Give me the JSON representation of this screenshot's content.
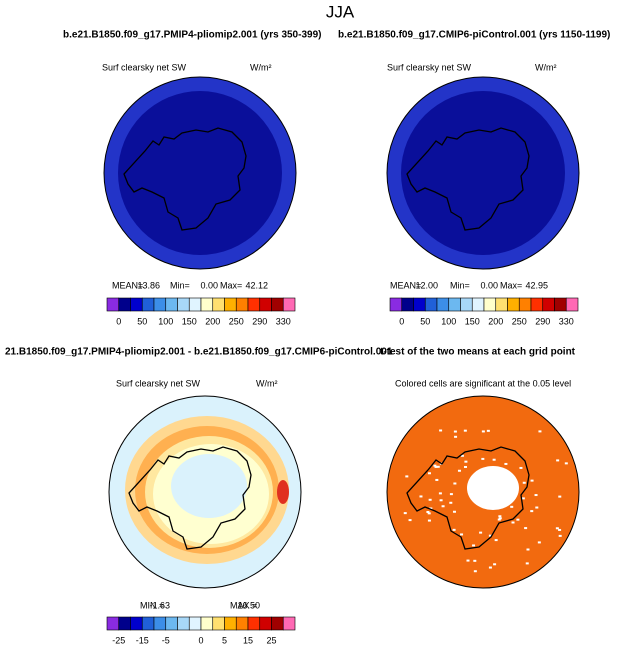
{
  "title": "JJA",
  "panels": [
    {
      "title": "b.e21.B1850.f09_g17.PMIP4-pliomip2.001 (yrs 350-399)",
      "label": "Surf clearsky net SW",
      "units": "W/m²",
      "stats": [
        {
          "label": "MEAN=",
          "value": "13.86"
        },
        {
          "label": "Min=",
          "value": "0.00"
        },
        {
          "label": "Max=",
          "value": "42.12"
        }
      ],
      "colorbar": [
        "0",
        "50",
        "100",
        "150",
        "200",
        "250",
        "290",
        "330"
      ]
    },
    {
      "title": "b.e21.B1850.f09_g17.CMIP6-piControl.001 (yrs 1150-1199)",
      "label": "Surf clearsky net SW",
      "units": "W/m²",
      "stats": [
        {
          "label": "MEAN=",
          "value": "12.00"
        },
        {
          "label": "Min=",
          "value": "0.00"
        },
        {
          "label": "Max=",
          "value": "42.95"
        }
      ],
      "colorbar": [
        "0",
        "50",
        "100",
        "150",
        "200",
        "250",
        "290",
        "330"
      ]
    },
    {
      "title": "21.B1850.f09_g17.PMIP4-pliomip2.001 - b.e21.B1850.f09_g17.CMIP6-piControl.001",
      "label": "Surf clearsky net SW",
      "units": "W/m²",
      "stats": [
        {
          "label": "MIN =",
          "value": "-1.63"
        },
        {
          "label": "MAX =",
          "value": "16.50"
        }
      ],
      "colorbar": [
        "-25",
        "-15",
        "-5",
        "0",
        "5",
        "15",
        "25"
      ]
    },
    {
      "title": "t-test of the two means at each grid point",
      "label": "Colored cells are significant at the 0.05 level"
    }
  ]
}
